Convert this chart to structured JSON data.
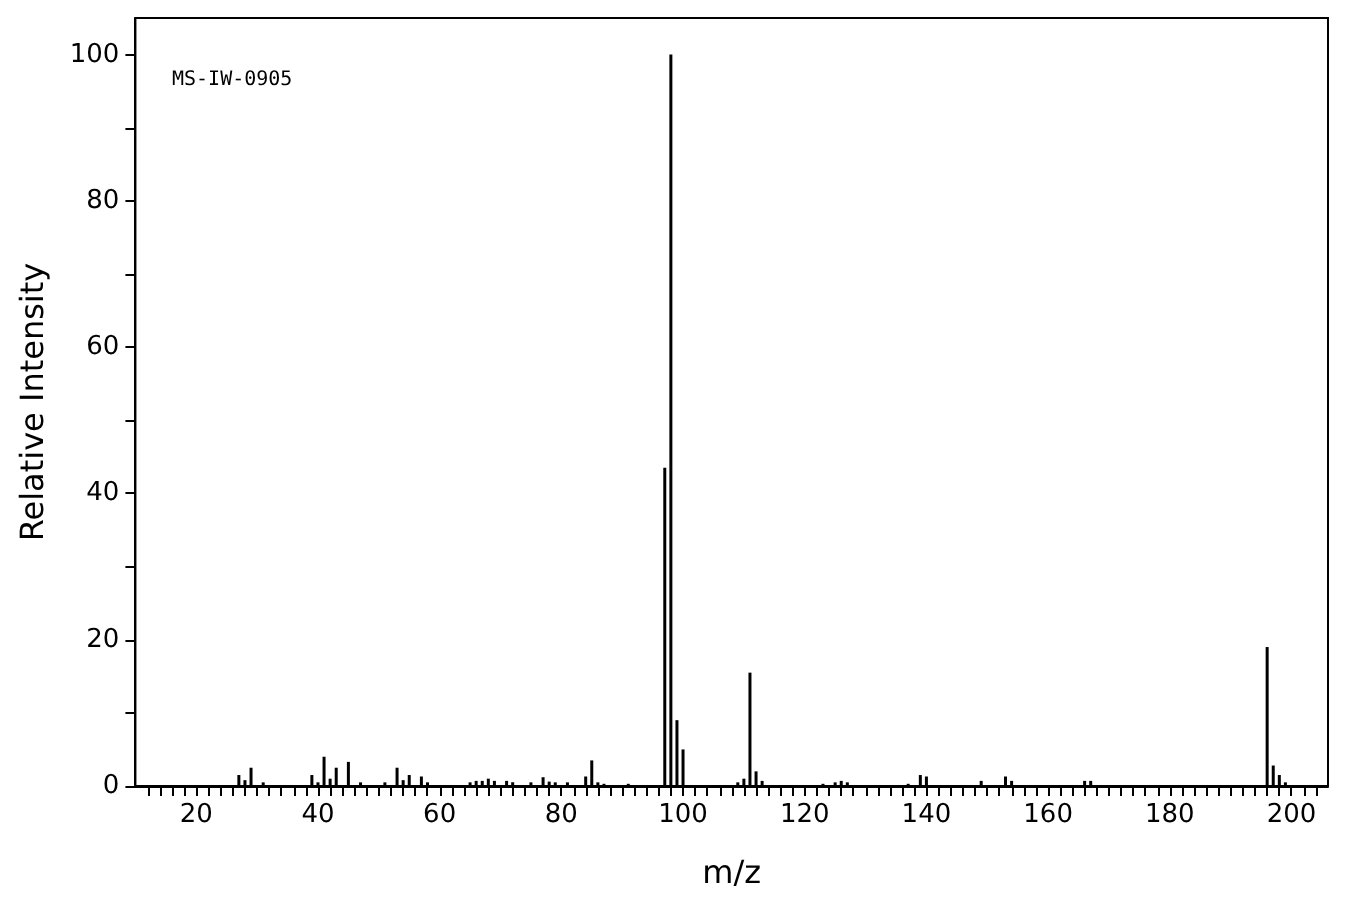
{
  "chart_data": {
    "type": "bar",
    "xlabel": "m/z",
    "ylabel": "Relative Intensity",
    "annotations": [
      "MS-IW-0905"
    ],
    "x": [
      27,
      28,
      29,
      31,
      39,
      40,
      41,
      42,
      43,
      45,
      47,
      51,
      53,
      54,
      55,
      57,
      58,
      65,
      66,
      67,
      68,
      69,
      71,
      72,
      75,
      77,
      78,
      79,
      81,
      84,
      85,
      86,
      87,
      91,
      93,
      94,
      95,
      97,
      98,
      99,
      100,
      109,
      110,
      111,
      112,
      113,
      123,
      125,
      126,
      127,
      137,
      139,
      140,
      149,
      153,
      154,
      164,
      166,
      167,
      196,
      197,
      198,
      199
    ],
    "values": [
      1.5,
      0.8,
      2.5,
      0.5,
      1.5,
      0.5,
      4,
      1,
      2.5,
      3.3,
      0.5,
      0.5,
      2.5,
      0.8,
      1.5,
      1.3,
      0.5,
      0.5,
      0.7,
      0.7,
      1,
      0.7,
      0.7,
      0.5,
      0.5,
      1.2,
      0.6,
      0.5,
      0.5,
      1.3,
      3.5,
      0.5,
      0.3,
      0.3,
      null,
      null,
      null,
      43.5,
      100,
      9,
      5,
      0.5,
      1,
      15.5,
      2,
      0.7,
      0.3,
      0.5,
      0.7,
      0.5,
      0.3,
      1.5,
      1.3,
      0.7,
      1.3,
      0.7,
      null,
      0.7,
      0.7,
      19,
      2.8,
      1.5,
      0.5
    ],
    "color": "#000000",
    "xlim": [
      10,
      206
    ],
    "ylim": [
      0,
      105
    ],
    "xticks": [
      {
        "value": 12,
        "label": null
      },
      {
        "value": 14,
        "label": null
      },
      {
        "value": 16,
        "label": null
      },
      {
        "value": 18,
        "label": null
      },
      20,
      {
        "value": 22,
        "label": null
      },
      {
        "value": 24,
        "label": null
      },
      {
        "value": 26,
        "label": null
      },
      {
        "value": 28,
        "label": null
      },
      {
        "value": 30,
        "label": null
      },
      {
        "value": 32,
        "label": null
      },
      {
        "value": 34,
        "label": null
      },
      {
        "value": 36,
        "label": null
      },
      {
        "value": 38,
        "label": null
      },
      40,
      {
        "value": 42,
        "label": null
      },
      {
        "value": 44,
        "label": null
      },
      {
        "value": 46,
        "label": null
      },
      {
        "value": 48,
        "label": null
      },
      {
        "value": 50,
        "label": null
      },
      {
        "value": 52,
        "label": null
      },
      {
        "value": 54,
        "label": null
      },
      {
        "value": 56,
        "label": null
      },
      {
        "value": 58,
        "label": null
      },
      60,
      {
        "value": 62,
        "label": null
      },
      {
        "value": 64,
        "label": null
      },
      {
        "value": 66,
        "label": null
      },
      {
        "value": 68,
        "label": null
      },
      {
        "value": 70,
        "label": null
      },
      {
        "value": 72,
        "label": null
      },
      {
        "value": 74,
        "label": null
      },
      {
        "value": 76,
        "label": null
      },
      {
        "value": 78,
        "label": null
      },
      80,
      {
        "value": 82,
        "label": null
      },
      {
        "value": 84,
        "label": null
      },
      {
        "value": 86,
        "label": null
      },
      {
        "value": 88,
        "label": null
      },
      {
        "value": 90,
        "label": null
      },
      {
        "value": 92,
        "label": null
      },
      {
        "value": 94,
        "label": null
      },
      {
        "value": 96,
        "label": null
      },
      {
        "value": 98,
        "label": null
      },
      100,
      {
        "value": 102,
        "label": null
      },
      {
        "value": 104,
        "label": null
      },
      {
        "value": 106,
        "label": null
      },
      {
        "value": 108,
        "label": null
      },
      {
        "value": 110,
        "label": null
      },
      {
        "value": 112,
        "label": null
      },
      {
        "value": 114,
        "label": null
      },
      {
        "value": 116,
        "label": null
      },
      {
        "value": 118,
        "label": null
      },
      120,
      {
        "value": 122,
        "label": null
      },
      {
        "value": 124,
        "label": null
      },
      {
        "value": 126,
        "label": null
      },
      {
        "value": 128,
        "label": null
      },
      {
        "value": 130,
        "label": null
      },
      {
        "value": 132,
        "label": null
      },
      {
        "value": 134,
        "label": null
      },
      {
        "value": 136,
        "label": null
      },
      {
        "value": 138,
        "label": null
      },
      140,
      {
        "value": 142,
        "label": null
      },
      {
        "value": 144,
        "label": null
      },
      {
        "value": 146,
        "label": null
      },
      {
        "value": 148,
        "label": null
      },
      {
        "value": 150,
        "label": null
      },
      {
        "value": 152,
        "label": null
      },
      {
        "value": 154,
        "label": null
      },
      {
        "value": 156,
        "label": null
      },
      {
        "value": 158,
        "label": null
      },
      160,
      {
        "value": 162,
        "label": null
      },
      {
        "value": 164,
        "label": null
      },
      {
        "value": 166,
        "label": null
      },
      {
        "value": 168,
        "label": null
      },
      {
        "value": 170,
        "label": null
      },
      {
        "value": 172,
        "label": null
      },
      {
        "value": 174,
        "label": null
      },
      {
        "value": 176,
        "label": null
      },
      {
        "value": 178,
        "label": null
      },
      180,
      {
        "value": 182,
        "label": null
      },
      {
        "value": 184,
        "label": null
      },
      {
        "value": 186,
        "label": null
      },
      {
        "value": 188,
        "label": null
      },
      {
        "value": 190,
        "label": null
      },
      {
        "value": 192,
        "label": null
      },
      {
        "value": 194,
        "label": null
      },
      {
        "value": 196,
        "label": null
      },
      {
        "value": 198,
        "label": null
      },
      200,
      {
        "value": 202,
        "label": null
      },
      {
        "value": 204,
        "label": null
      }
    ],
    "yticks": [
      0,
      {
        "value": 10,
        "label": null
      },
      20,
      {
        "value": 30,
        "label": null
      },
      40,
      {
        "value": 50,
        "label": null
      },
      60,
      {
        "value": 70,
        "label": null
      },
      80,
      {
        "value": 90,
        "label": null
      },
      100
    ],
    "grid": false
  }
}
